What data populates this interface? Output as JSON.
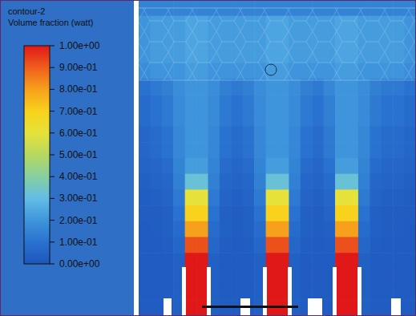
{
  "chart_data": {
    "type": "heatmap",
    "title": "contour-2",
    "subtitle": "Volume fraction (watt)",
    "tick_labels": false,
    "colorbar_range": [
      0,
      1
    ],
    "colorbar_ticks": [
      {
        "value": 1,
        "label": "1.00e+00"
      },
      {
        "value": 0.9,
        "label": "9.00e-01"
      },
      {
        "value": 0.8,
        "label": "8.00e-01"
      },
      {
        "value": 0.7,
        "label": "7.00e-01"
      },
      {
        "value": 0.6,
        "label": "6.00e-01"
      },
      {
        "value": 0.5,
        "label": "5.00e-01"
      },
      {
        "value": 0.4,
        "label": "4.00e-01"
      },
      {
        "value": 0.3,
        "label": "3.00e-01"
      },
      {
        "value": 0.2,
        "label": "2.00e-01"
      },
      {
        "value": 0.1,
        "label": "1.00e-01"
      },
      {
        "value": 0,
        "label": "0.00e+00"
      }
    ],
    "cells": [
      [
        0.15,
        0.15,
        0.15,
        0.15,
        0.15,
        0.15,
        0.15,
        0.15,
        0.15,
        0.15,
        0.15,
        0.15,
        0.15,
        0.15,
        0.15,
        0.15,
        0.15,
        0.15,
        0.15,
        0.15,
        0.15,
        0.15,
        0.15,
        0.15
      ],
      [
        0.2,
        0.22,
        0.22,
        0.22,
        0.24,
        0.24,
        0.22,
        0.22,
        0.22,
        0.22,
        0.22,
        0.24,
        0.24,
        0.22,
        0.22,
        0.22,
        0.22,
        0.24,
        0.24,
        0.22,
        0.22,
        0.22,
        0.22,
        0.2
      ],
      [
        0.2,
        0.22,
        0.22,
        0.22,
        0.24,
        0.24,
        0.22,
        0.22,
        0.22,
        0.22,
        0.22,
        0.24,
        0.24,
        0.22,
        0.22,
        0.22,
        0.22,
        0.24,
        0.24,
        0.22,
        0.22,
        0.22,
        0.22,
        0.2
      ],
      [
        0.2,
        0.22,
        0.22,
        0.22,
        0.24,
        0.24,
        0.22,
        0.22,
        0.22,
        0.22,
        0.22,
        0.24,
        0.24,
        0.22,
        0.22,
        0.22,
        0.22,
        0.24,
        0.24,
        0.22,
        0.22,
        0.22,
        0.22,
        0.2
      ],
      [
        0.18,
        0.2,
        0.2,
        0.2,
        0.22,
        0.22,
        0.2,
        0.2,
        0.2,
        0.2,
        0.2,
        0.22,
        0.22,
        0.2,
        0.2,
        0.2,
        0.2,
        0.22,
        0.22,
        0.2,
        0.2,
        0.2,
        0.2,
        0.18
      ],
      [
        0.1,
        0.12,
        0.14,
        0.18,
        0.2,
        0.2,
        0.18,
        0.14,
        0.12,
        0.14,
        0.18,
        0.2,
        0.2,
        0.18,
        0.14,
        0.12,
        0.16,
        0.2,
        0.2,
        0.18,
        0.14,
        0.12,
        0.12,
        0.1
      ],
      [
        0.08,
        0.1,
        0.12,
        0.17,
        0.2,
        0.2,
        0.17,
        0.12,
        0.1,
        0.12,
        0.17,
        0.2,
        0.2,
        0.17,
        0.12,
        0.1,
        0.14,
        0.2,
        0.2,
        0.17,
        0.12,
        0.1,
        0.1,
        0.08
      ],
      [
        0.08,
        0.1,
        0.12,
        0.17,
        0.2,
        0.2,
        0.17,
        0.12,
        0.1,
        0.12,
        0.17,
        0.2,
        0.2,
        0.17,
        0.12,
        0.1,
        0.14,
        0.2,
        0.2,
        0.17,
        0.12,
        0.1,
        0.1,
        0.08
      ],
      [
        0.06,
        0.08,
        0.1,
        0.16,
        0.2,
        0.2,
        0.16,
        0.1,
        0.08,
        0.1,
        0.16,
        0.2,
        0.2,
        0.16,
        0.1,
        0.08,
        0.12,
        0.2,
        0.2,
        0.16,
        0.1,
        0.08,
        0.08,
        0.06
      ],
      [
        0.06,
        0.08,
        0.1,
        0.16,
        0.2,
        0.2,
        0.16,
        0.1,
        0.08,
        0.1,
        0.16,
        0.2,
        0.2,
        0.16,
        0.1,
        0.08,
        0.12,
        0.2,
        0.2,
        0.16,
        0.1,
        0.08,
        0.08,
        0.06
      ],
      [
        0.05,
        0.06,
        0.08,
        0.15,
        0.22,
        0.22,
        0.15,
        0.08,
        0.06,
        0.08,
        0.15,
        0.22,
        0.22,
        0.15,
        0.08,
        0.06,
        0.1,
        0.22,
        0.22,
        0.15,
        0.08,
        0.06,
        0.06,
        0.05
      ],
      [
        0.04,
        0.05,
        0.06,
        0.14,
        0.32,
        0.32,
        0.14,
        0.06,
        0.05,
        0.06,
        0.14,
        0.32,
        0.32,
        0.14,
        0.06,
        0.05,
        0.08,
        0.32,
        0.32,
        0.14,
        0.06,
        0.05,
        0.05,
        0.04
      ],
      [
        0.03,
        0.04,
        0.05,
        0.12,
        0.6,
        0.6,
        0.12,
        0.05,
        0.04,
        0.05,
        0.12,
        0.6,
        0.6,
        0.12,
        0.05,
        0.04,
        0.06,
        0.6,
        0.6,
        0.12,
        0.05,
        0.04,
        0.04,
        0.03
      ],
      [
        0.03,
        0.03,
        0.04,
        0.1,
        0.7,
        0.7,
        0.1,
        0.04,
        0.03,
        0.04,
        0.1,
        0.7,
        0.7,
        0.1,
        0.04,
        0.03,
        0.05,
        0.7,
        0.7,
        0.1,
        0.04,
        0.03,
        0.03,
        0.03
      ],
      [
        0.02,
        0.03,
        0.04,
        0.08,
        0.8,
        0.8,
        0.08,
        0.04,
        0.03,
        0.04,
        0.08,
        0.8,
        0.8,
        0.08,
        0.04,
        0.03,
        0.04,
        0.8,
        0.8,
        0.08,
        0.04,
        0.03,
        0.03,
        0.02
      ],
      [
        0.02,
        0.02,
        0.03,
        0.06,
        0.92,
        0.92,
        0.06,
        0.03,
        0.02,
        0.03,
        0.06,
        0.92,
        0.92,
        0.06,
        0.03,
        0.02,
        0.03,
        0.92,
        0.92,
        0.06,
        0.03,
        0.02,
        0.02,
        0.02
      ],
      [
        0.02,
        0.02,
        0.02,
        0.04,
        1,
        1,
        0.04,
        0.02,
        0.02,
        0.02,
        0.04,
        1,
        1,
        0.04,
        0.02,
        0.02,
        0.02,
        1,
        1,
        0.04,
        0.02,
        0.02,
        0.02,
        0.02
      ],
      [
        0.02,
        0.02,
        0.02,
        0.04,
        1,
        1,
        0.04,
        0.02,
        0.02,
        0.02,
        0.04,
        1,
        1,
        0.04,
        0.02,
        0.02,
        0.02,
        1,
        1,
        0.04,
        0.02,
        0.02,
        0.02,
        0.02
      ],
      [
        0.02,
        0.02,
        0.02,
        0.04,
        1,
        1,
        0.04,
        0.02,
        0.02,
        0.02,
        0.04,
        1,
        1,
        0.04,
        0.02,
        0.02,
        0.02,
        1,
        1,
        0.04,
        0.02,
        0.02,
        0.02,
        0.02
      ],
      [
        0.02,
        0.02,
        0.02,
        0.04,
        1,
        1,
        0.04,
        0.02,
        0.02,
        0.02,
        0.04,
        1,
        1,
        0.04,
        0.02,
        0.02,
        0.02,
        1,
        1,
        0.04,
        0.02,
        0.02,
        0.02,
        0.02
      ]
    ]
  }
}
